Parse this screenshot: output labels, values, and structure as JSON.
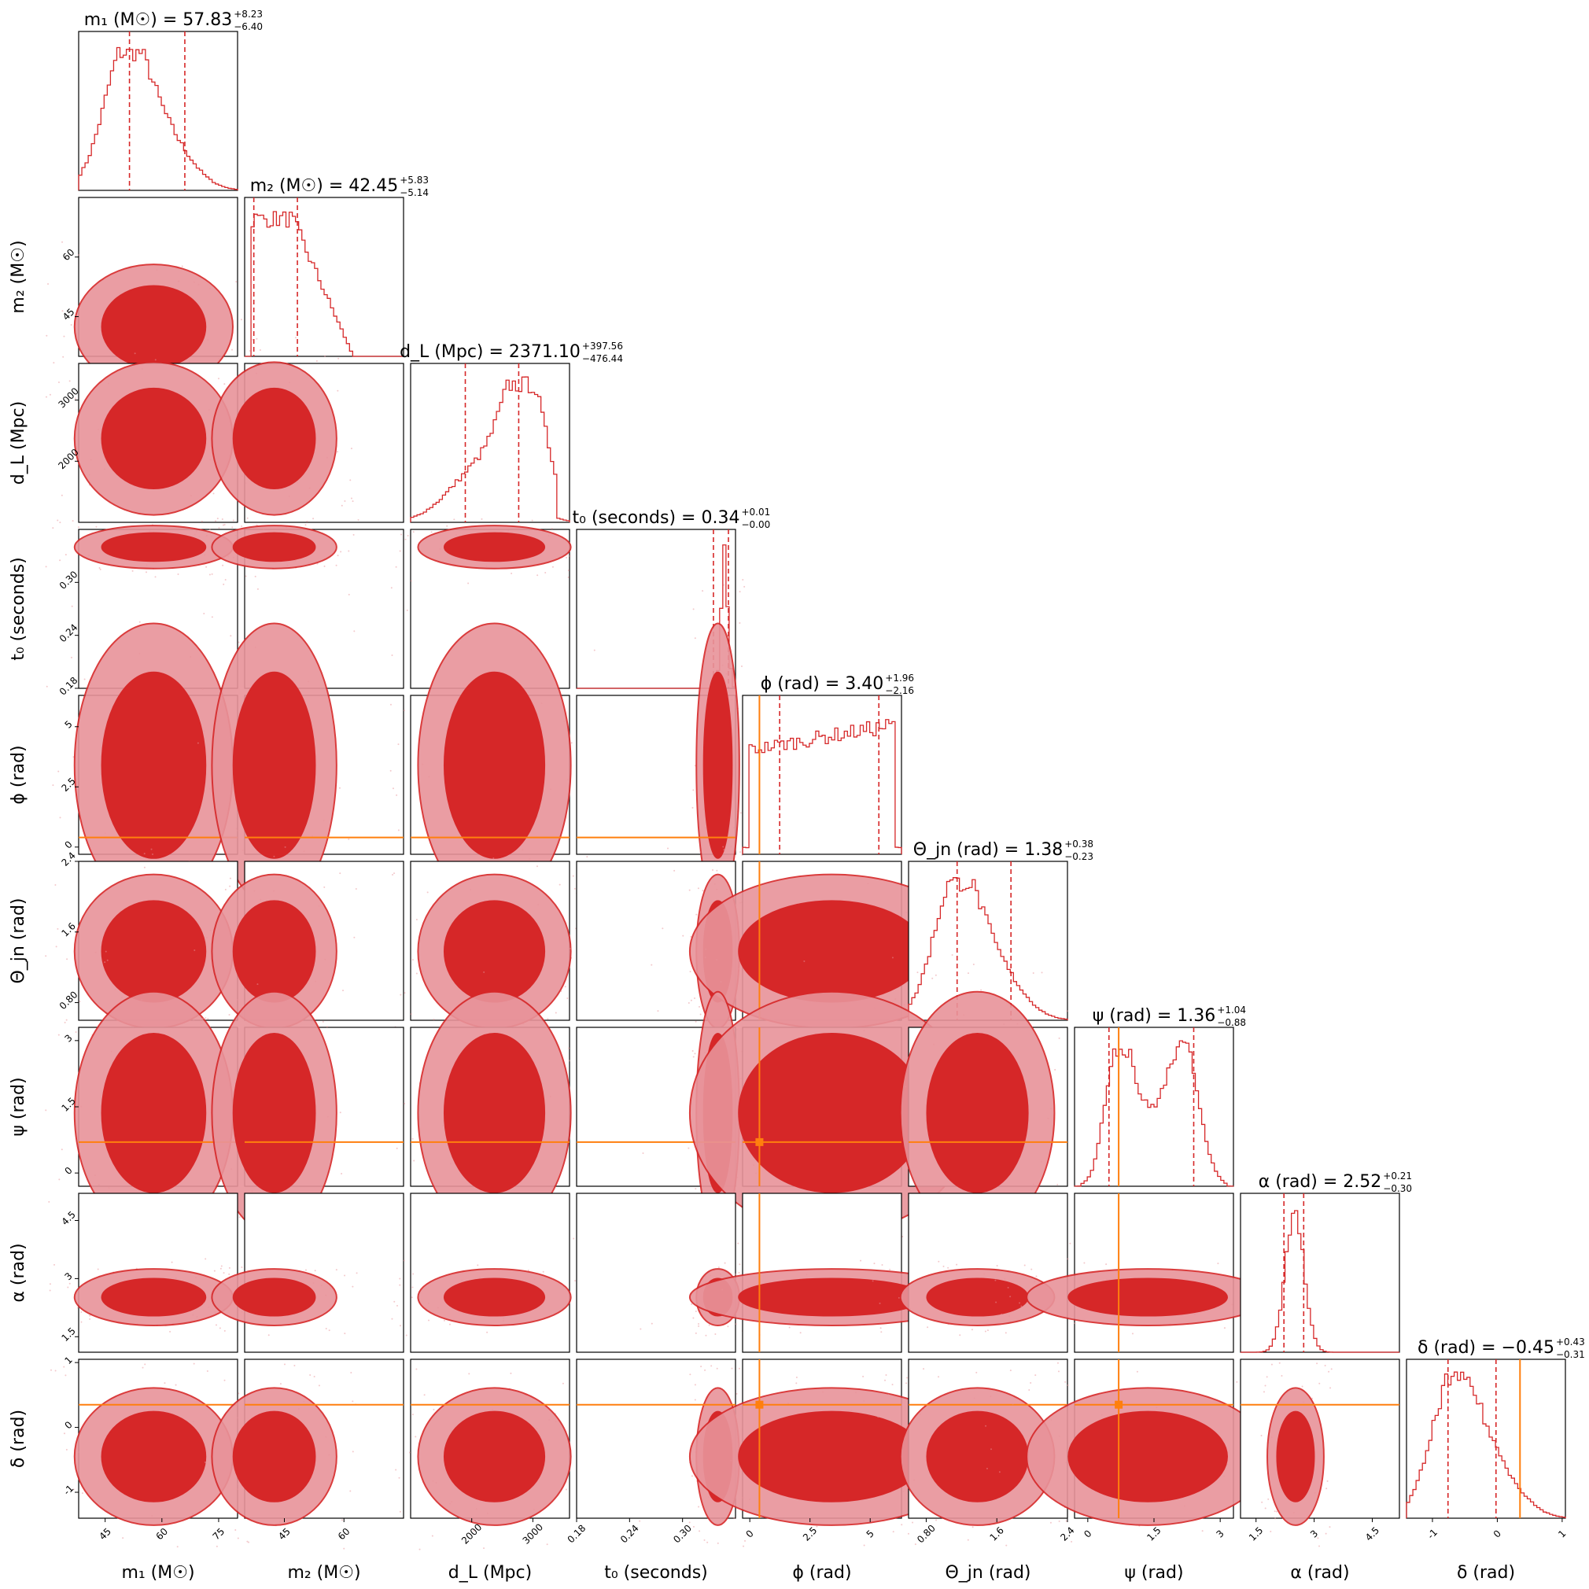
{
  "chart_data": {
    "type": "corner",
    "params": [
      {
        "key": "m1",
        "label": "m₁ (M☉)",
        "title": "m₁ (M☉) = 57.83",
        "plus": "+8.23",
        "minus": "−6.40",
        "median": 57.83,
        "lo": 51.43,
        "hi": 66.06,
        "range": [
          38,
          80
        ],
        "ticks": [
          45,
          60,
          75
        ],
        "truth": null,
        "hist_shape": "skew"
      },
      {
        "key": "m2",
        "label": "m₂ (M☉)",
        "title": "m₂ (M☉) = 42.45",
        "plus": "+5.83",
        "minus": "−5.14",
        "median": 42.45,
        "lo": 37.31,
        "hi": 48.28,
        "range": [
          35,
          75
        ],
        "ticks": [
          45,
          60
        ],
        "truth": null,
        "hist_shape": "plateau"
      },
      {
        "key": "dL",
        "label": "d_L (Mpc)",
        "title": "d_L (Mpc) = 2371.10",
        "plus": "+397.56",
        "minus": "−476.44",
        "median": 2371.1,
        "lo": 1894.66,
        "hi": 2768.66,
        "range": [
          1000,
          3600
        ],
        "ticks": [
          2000,
          3000
        ],
        "truth": null,
        "hist_shape": "rightskew"
      },
      {
        "key": "t0",
        "label": "t₀ (seconds)",
        "title": "t₀ (seconds) = 0.34",
        "plus": "+0.01",
        "minus": "−0.00",
        "median": 0.34,
        "lo": 0.335,
        "hi": 0.352,
        "range": [
          0.18,
          0.36
        ],
        "ticks": [
          0.18,
          0.24,
          0.3
        ],
        "truth": null,
        "hist_shape": "spike"
      },
      {
        "key": "phi",
        "label": "ϕ (rad)",
        "title": "ϕ (rad) = 3.40",
        "plus": "+1.96",
        "minus": "−2.16",
        "median": 3.4,
        "lo": 1.24,
        "hi": 5.36,
        "range": [
          -0.3,
          6.3
        ],
        "ticks": [
          0.0,
          2.5,
          5.0
        ],
        "truth": 0.4,
        "hist_shape": "uniform"
      },
      {
        "key": "theta",
        "label": "Θ_jn (rad)",
        "title": "Θ_jn (rad) = 1.38",
        "plus": "+0.38",
        "minus": "−0.23",
        "median": 1.38,
        "lo": 1.15,
        "hi": 1.76,
        "range": [
          0.6,
          2.4
        ],
        "ticks": [
          0.8,
          1.6,
          2.4
        ],
        "truth": null,
        "hist_shape": "skew"
      },
      {
        "key": "psi",
        "label": "ψ (rad)",
        "title": "ψ (rad) = 1.36",
        "plus": "+1.04",
        "minus": "−0.88",
        "median": 1.36,
        "lo": 0.48,
        "hi": 2.4,
        "range": [
          -0.3,
          3.3
        ],
        "ticks": [
          0.0,
          1.5,
          3.0
        ],
        "truth": 0.7,
        "hist_shape": "bimodal"
      },
      {
        "key": "alpha",
        "label": "α (rad)",
        "title": "α (rad) = 2.52",
        "plus": "+0.21",
        "minus": "−0.30",
        "median": 2.52,
        "lo": 2.22,
        "hi": 2.73,
        "range": [
          1.1,
          5.2
        ],
        "ticks": [
          1.5,
          3.0,
          4.5
        ],
        "truth": null,
        "hist_shape": "narrow"
      },
      {
        "key": "delta",
        "label": "δ (rad)",
        "title": "δ (rad) = −0.45",
        "plus": "+0.43",
        "minus": "−0.31",
        "median": -0.45,
        "lo": -0.76,
        "hi": -0.02,
        "range": [
          -1.4,
          1.05
        ],
        "ticks": [
          -1,
          0,
          1
        ],
        "truth": 0.35,
        "hist_shape": "skew"
      }
    ],
    "colors": {
      "posterior": "#d62728",
      "contour_dark": "#d62728",
      "contour_light": "#e8939a",
      "truth": "#ff7f0e",
      "frame": "#000000"
    }
  }
}
